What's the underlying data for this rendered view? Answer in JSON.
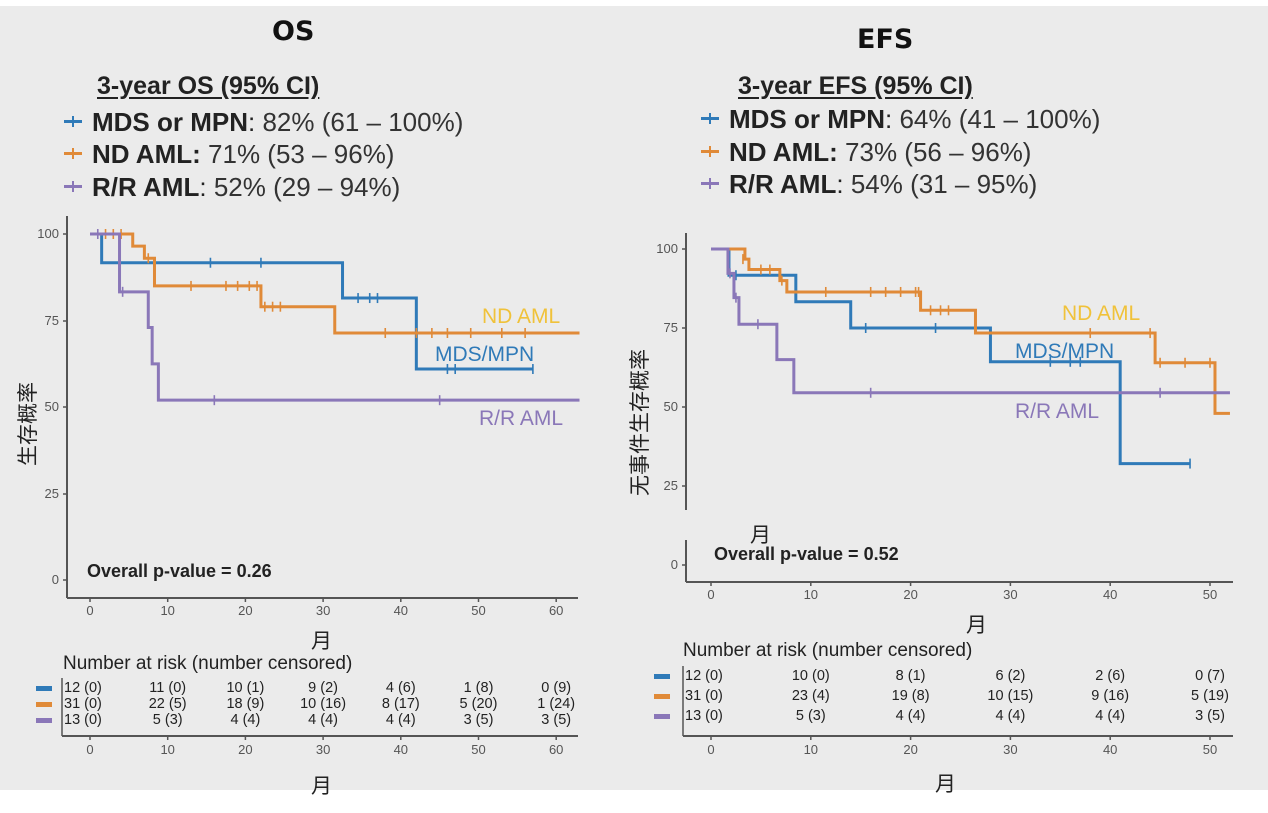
{
  "colors": {
    "mds_mpn": "#2f7ab8",
    "nd_aml": "#e08a38",
    "rr_aml": "#8a77b8",
    "nd_aml_label": "#f0c23a",
    "axis": "#555555"
  },
  "os": {
    "title": "OS",
    "ci_heading": "3-year OS (95% CI)",
    "ci_rows": [
      {
        "group": "MDS or MPN",
        "sep": ":",
        "value": " 82% (61 – 100%)"
      },
      {
        "group": "ND AML:",
        "sep": "",
        "value": " 71% (53 – 96%)"
      },
      {
        "group": "R/R AML",
        "sep": ":",
        "value": " 52% (29 – 94%)"
      }
    ],
    "ylabel": "生存概率",
    "xlabel": "月",
    "pvalue": "Overall p-value = 0.26",
    "risk_title": "Number at risk (number censored)",
    "risk_xlabel": "月",
    "curve_labels": {
      "nd_aml": "ND AML",
      "mds_mpn": "MDS/MPN",
      "rr_aml": "R/R AML"
    }
  },
  "efs": {
    "title": "EFS",
    "ci_heading": "3-year EFS (95% CI)",
    "ci_rows": [
      {
        "group": "MDS or MPN",
        "sep": ":",
        "value": " 64% (41 – 100%)"
      },
      {
        "group": "ND AML:",
        "sep": "",
        "value": " 73% (56 – 96%)"
      },
      {
        "group": "R/R AML",
        "sep": ":",
        "value": " 54% (31 – 95%)"
      }
    ],
    "ylabel": "无事件生存概率",
    "xlabel": "月",
    "stray_label": "月",
    "pvalue": "Overall p-value = 0.52",
    "risk_title": "Number at risk (number censored)",
    "risk_xlabel": "月",
    "curve_labels": {
      "nd_aml": "ND AML",
      "mds_mpn": "MDS/MPN",
      "rr_aml": "R/R AML"
    }
  },
  "chart_data": [
    {
      "type": "line",
      "subtype": "kaplan-meier step",
      "title": "OS",
      "xlabel": "月",
      "ylabel": "生存概率",
      "xlim": [
        -3,
        63
      ],
      "ylim": [
        0,
        100
      ],
      "xticks": [
        0,
        10,
        20,
        30,
        40,
        50,
        60
      ],
      "yticks": [
        0,
        25,
        50,
        75,
        100
      ],
      "annotation": "Overall p-value = 0.26",
      "series": [
        {
          "name": "MDS/MPN",
          "color_key": "mds_mpn",
          "steps": [
            [
              0,
              100
            ],
            [
              1.5,
              91.7
            ],
            [
              32.5,
              81.5
            ],
            [
              42,
              61
            ],
            [
              57,
              61
            ]
          ],
          "censored": [
            [
              15.5,
              91.7
            ],
            [
              22,
              91.7
            ],
            [
              34.5,
              81.5
            ],
            [
              36,
              81.5
            ],
            [
              37,
              81.5
            ],
            [
              46,
              61
            ],
            [
              47,
              61
            ],
            [
              57,
              61
            ]
          ]
        },
        {
          "name": "ND AML",
          "color_key": "nd_aml",
          "steps": [
            [
              0,
              100
            ],
            [
              5.5,
              96.5
            ],
            [
              7,
              93
            ],
            [
              8.3,
              85
            ],
            [
              22,
              79
            ],
            [
              31.5,
              71.4
            ],
            [
              63,
              71.4
            ]
          ],
          "censored": [
            [
              2,
              100
            ],
            [
              3,
              100
            ],
            [
              4,
              100
            ],
            [
              7.5,
              93
            ],
            [
              13,
              85
            ],
            [
              17.5,
              85
            ],
            [
              19,
              85
            ],
            [
              20.5,
              85
            ],
            [
              21.5,
              85
            ],
            [
              22.5,
              79
            ],
            [
              23.5,
              79
            ],
            [
              24.5,
              79
            ],
            [
              38,
              71.4
            ],
            [
              42,
              71.4
            ],
            [
              44,
              71.4
            ],
            [
              46,
              71.4
            ],
            [
              49,
              71.4
            ],
            [
              53,
              71.4
            ],
            [
              56,
              71.4
            ]
          ]
        },
        {
          "name": "R/R AML",
          "color_key": "rr_aml",
          "steps": [
            [
              0,
              100
            ],
            [
              3.8,
              83.3
            ],
            [
              7.5,
              73
            ],
            [
              8,
              62.5
            ],
            [
              8.8,
              52
            ],
            [
              63,
              52
            ]
          ],
          "censored": [
            [
              1,
              100
            ],
            [
              4.2,
              83.3
            ],
            [
              16,
              52
            ],
            [
              45,
              52
            ]
          ]
        }
      ],
      "risk_table": {
        "title": "Number at risk (number censored)",
        "times": [
          0,
          10,
          20,
          30,
          40,
          50,
          60
        ],
        "rows": [
          {
            "group": "MDS/MPN",
            "values": [
              "12 (0)",
              "11 (0)",
              "10 (1)",
              "9 (2)",
              "4 (6)",
              "1 (8)",
              "0 (9)"
            ]
          },
          {
            "group": "ND AML",
            "values": [
              "31 (0)",
              "22 (5)",
              "18 (9)",
              "10 (16)",
              "8 (17)",
              "5 (20)",
              "1 (24)"
            ]
          },
          {
            "group": "R/R AML",
            "values": [
              "13 (0)",
              "5 (3)",
              "4 (4)",
              "4 (4)",
              "4 (4)",
              "3 (5)",
              "3 (5)"
            ]
          }
        ],
        "xlabel": "月"
      }
    },
    {
      "type": "line",
      "subtype": "kaplan-meier step",
      "title": "EFS",
      "xlabel": "月",
      "ylabel": "无事件生存概率",
      "xlim": [
        -1,
        52
      ],
      "ylim": [
        0,
        100
      ],
      "xticks": [
        0,
        10,
        20,
        30,
        40,
        50
      ],
      "yticks": [
        0,
        25,
        50,
        75,
        100
      ],
      "annotation": "Overall p-value = 0.52",
      "series": [
        {
          "name": "MDS/MPN",
          "color_key": "mds_mpn",
          "steps": [
            [
              0,
              100
            ],
            [
              1.8,
              91.7
            ],
            [
              8.5,
              83.3
            ],
            [
              14,
              75
            ],
            [
              28,
              64.3
            ],
            [
              41,
              32.1
            ],
            [
              48,
              32.1
            ]
          ],
          "censored": [
            [
              2.5,
              91.7
            ],
            [
              15.5,
              75
            ],
            [
              22.5,
              75
            ],
            [
              34,
              64.3
            ],
            [
              36,
              64.3
            ],
            [
              37,
              64.3
            ],
            [
              48,
              32.1
            ]
          ]
        },
        {
          "name": "ND AML",
          "color_key": "nd_aml",
          "steps": [
            [
              0,
              100
            ],
            [
              3.4,
              96.8
            ],
            [
              3.8,
              93.5
            ],
            [
              6.9,
              90
            ],
            [
              7.6,
              86.4
            ],
            [
              21,
              80.6
            ],
            [
              26.5,
              73.4
            ],
            [
              44.5,
              64
            ],
            [
              50.5,
              48
            ],
            [
              52,
              48
            ]
          ],
          "censored": [
            [
              3.2,
              96.8
            ],
            [
              5,
              93.5
            ],
            [
              5.9,
              93.5
            ],
            [
              7.1,
              90
            ],
            [
              11.5,
              86.4
            ],
            [
              16,
              86.4
            ],
            [
              17.5,
              86.4
            ],
            [
              19,
              86.4
            ],
            [
              20.5,
              86.4
            ],
            [
              20.8,
              86.4
            ],
            [
              22,
              80.6
            ],
            [
              23,
              80.6
            ],
            [
              23.8,
              80.6
            ],
            [
              38,
              73.4
            ],
            [
              44,
              73.4
            ],
            [
              45,
              64
            ],
            [
              47.5,
              64
            ],
            [
              50,
              64
            ]
          ]
        },
        {
          "name": "R/R AML",
          "color_key": "rr_aml",
          "steps": [
            [
              0,
              100
            ],
            [
              1.7,
              92.3
            ],
            [
              2.3,
              84.6
            ],
            [
              2.8,
              76.2
            ],
            [
              6.6,
              65
            ],
            [
              8.3,
              54.5
            ],
            [
              52,
              54.5
            ]
          ],
          "censored": [
            [
              1.9,
              92.3
            ],
            [
              2.5,
              84.6
            ],
            [
              4.7,
              76.2
            ],
            [
              16,
              54.5
            ],
            [
              45,
              54.5
            ]
          ]
        }
      ],
      "risk_table": {
        "title": "Number at risk (number censored)",
        "times": [
          0,
          10,
          20,
          30,
          40,
          50
        ],
        "rows": [
          {
            "group": "MDS/MPN",
            "values": [
              "12 (0)",
              "10 (0)",
              "8 (1)",
              "6 (2)",
              "2 (6)",
              "0 (7)"
            ]
          },
          {
            "group": "ND AML",
            "values": [
              "31 (0)",
              "23 (4)",
              "19 (8)",
              "10 (15)",
              "9 (16)",
              "5 (19)"
            ]
          },
          {
            "group": "R/R AML",
            "values": [
              "13 (0)",
              "5 (3)",
              "4 (4)",
              "4 (4)",
              "4 (4)",
              "3 (5)"
            ]
          }
        ],
        "xlabel": "月"
      }
    }
  ]
}
